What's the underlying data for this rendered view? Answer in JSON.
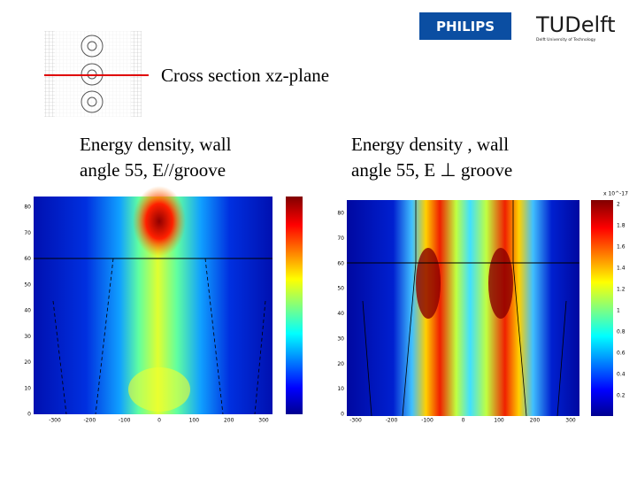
{
  "logos": {
    "philips": "PHILIPS",
    "tudelft": "TUDelft",
    "tudelft_sub": "Delft University of Technology"
  },
  "caption": "Cross section xz-plane",
  "panels": [
    {
      "title": [
        "Energy density, wall",
        "angle 55,  E//groove"
      ],
      "xticks": [
        -300,
        -200,
        -100,
        0,
        100,
        200,
        300
      ],
      "yticks": [
        0,
        10,
        20,
        30,
        40,
        50,
        60,
        70,
        80
      ]
    },
    {
      "title": [
        "Energy density , wall",
        "angle 55, E ⊥ groove"
      ],
      "xticks": [
        -300,
        -200,
        -100,
        0,
        100,
        200,
        300
      ],
      "yticks": [
        0,
        10,
        20,
        30,
        40,
        50,
        60,
        70,
        80
      ],
      "colorbar_ticks": [
        0.2,
        0.4,
        0.6,
        0.8,
        1,
        1.2,
        1.4,
        1.6,
        1.8,
        2
      ],
      "colorbar_exponent": "x 10^-17"
    }
  ]
}
